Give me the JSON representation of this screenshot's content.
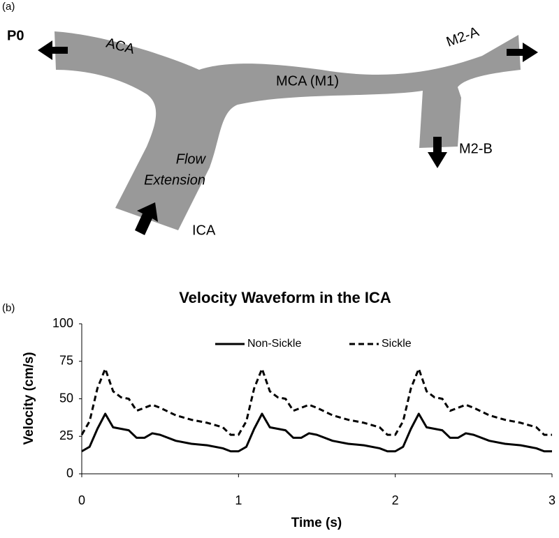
{
  "diagram": {
    "panel_label": "(a)",
    "labels": {
      "p0": "P0",
      "aca": "ACA",
      "m2a": "M2-A",
      "mca": "MCA (M1)",
      "m2b": "M2-B",
      "flow_line1": "Flow",
      "flow_line2": "Extension",
      "ica": "ICA"
    }
  },
  "chart_data": {
    "type": "line",
    "panel_label": "(b)",
    "title": "Velocity Waveform in the ICA",
    "x_label": "Time (s)",
    "y_label": "Velocity  (cm/s)",
    "x": [
      0,
      0.05,
      0.1,
      0.15,
      0.2,
      0.25,
      0.3,
      0.35,
      0.4,
      0.45,
      0.5,
      0.6,
      0.7,
      0.8,
      0.9,
      0.95,
      1,
      1.05,
      1.1,
      1.15,
      1.2,
      1.25,
      1.3,
      1.35,
      1.4,
      1.45,
      1.5,
      1.6,
      1.7,
      1.8,
      1.9,
      1.95,
      2,
      2.05,
      2.1,
      2.15,
      2.2,
      2.25,
      2.3,
      2.35,
      2.4,
      2.45,
      2.5,
      2.6,
      2.7,
      2.8,
      2.9,
      2.95,
      3
    ],
    "series": [
      {
        "name": "Non-Sickle",
        "color": "#000000",
        "line_style": "solid",
        "values": [
          15,
          18,
          30,
          40,
          31,
          30,
          29,
          24,
          24,
          27,
          26,
          22,
          20,
          19,
          17,
          15,
          15,
          18,
          30,
          40,
          31,
          30,
          29,
          24,
          24,
          27,
          26,
          22,
          20,
          19,
          17,
          15,
          15,
          18,
          30,
          40,
          31,
          30,
          29,
          24,
          24,
          27,
          26,
          22,
          20,
          19,
          17,
          15,
          15
        ]
      },
      {
        "name": "Sickle",
        "color": "#000000",
        "line_style": "dashed",
        "values": [
          26,
          35,
          57,
          70,
          55,
          51,
          50,
          42,
          44,
          46,
          44,
          39,
          36,
          34,
          31,
          26,
          26,
          35,
          57,
          70,
          55,
          51,
          50,
          42,
          44,
          46,
          44,
          39,
          36,
          34,
          31,
          26,
          26,
          35,
          57,
          70,
          55,
          51,
          50,
          42,
          44,
          46,
          44,
          39,
          36,
          34,
          31,
          26,
          26
        ]
      }
    ],
    "xlim": [
      0,
      3
    ],
    "xticks": [
      0,
      1,
      2,
      3
    ],
    "ylim": [
      0,
      100
    ],
    "yticks": [
      0,
      25,
      50,
      75,
      100
    ]
  }
}
